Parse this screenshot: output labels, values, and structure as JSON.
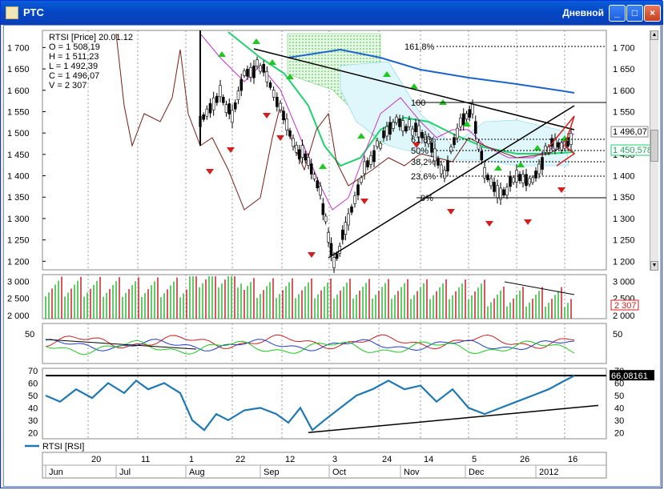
{
  "window": {
    "title": "РТС",
    "mode": "Дневной",
    "minimize": "_",
    "maximize": "□",
    "close": "×"
  },
  "main_panel": {
    "legend": [
      "RTSI [Price] 20.01.12",
      "O = 1 508,19",
      "H = 1 511,23",
      "L = 1 492,39",
      "C = 1 496,07",
      "V = 2 307"
    ],
    "price_labels": [
      "1 700",
      "1 650",
      "1 600",
      "1 550",
      "1 500",
      "1 450",
      "1 400",
      "1 350",
      "1 300",
      "1 250",
      "1 200"
    ],
    "last_price": "1 496,07",
    "ma_value": "1 450,578",
    "fib_levels": [
      "161,8%",
      "100",
      "61,8%",
      "50%",
      "38,2%",
      "23,6%",
      "0%"
    ]
  },
  "volume_panel": {
    "labels": [
      "3 000",
      "2 500",
      "2 000"
    ],
    "last": "2 307"
  },
  "osc_panel": {
    "labels": [
      "50",
      "50"
    ]
  },
  "rsi_panel": {
    "labels": [
      "70",
      "60",
      "50",
      "40",
      "30",
      "20"
    ],
    "last": "66,08161",
    "legend": "RTSI [RSI]"
  },
  "x_axis": {
    "days": [
      "20",
      "11",
      "1",
      "22",
      "12",
      "3",
      "24",
      "14",
      "5",
      "26",
      "16"
    ],
    "months": [
      "Jun",
      "Jul",
      "Aug",
      "Sep",
      "Oct",
      "Nov",
      "Dec",
      "2012"
    ]
  },
  "chart_data": {
    "type": "line",
    "title": "RTSI [Price] 20.01.12",
    "ylim_price": [
      1180,
      1740
    ],
    "ohlc_last": {
      "open": 1508.19,
      "high": 1511.23,
      "low": 1492.39,
      "close": 1496.07,
      "volume": 2307
    },
    "rsi_last": 66.08161,
    "rsi_ylim": [
      15,
      72
    ],
    "volume_ylim": [
      1900,
      3200
    ],
    "colors": {
      "price": "#000000",
      "ma_blue": "#1e64c8",
      "ma_green": "#1ed26e",
      "cloud": "#9ae0f0",
      "rsi": "#1e78b4",
      "up_vol": "#3cbe3c",
      "down_vol": "#c83232",
      "marker_up": "#1ec81e",
      "marker_down": "#d21e1e"
    }
  }
}
